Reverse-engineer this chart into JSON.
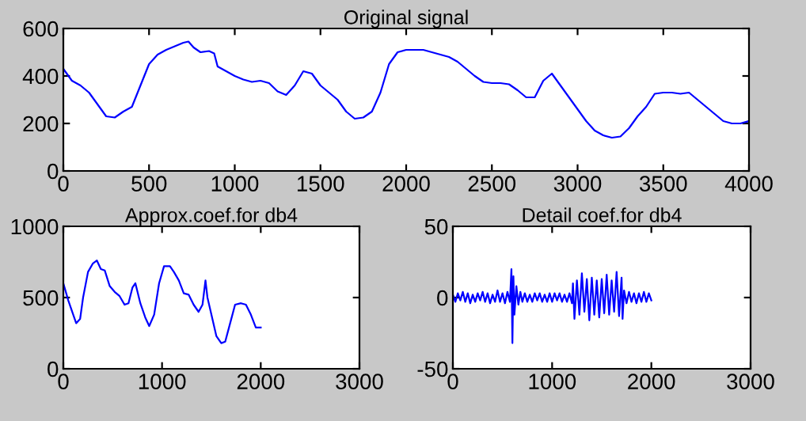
{
  "chart_data": [
    {
      "type": "line",
      "title": "Original signal",
      "xlim": [
        0,
        4000
      ],
      "ylim": [
        0,
        600
      ],
      "xticks": [
        0,
        500,
        1000,
        1500,
        2000,
        2500,
        3000,
        3500,
        4000
      ],
      "yticks": [
        0,
        200,
        400,
        600
      ],
      "series": [
        {
          "color": "#0000ff",
          "x": [
            0,
            50,
            100,
            150,
            200,
            250,
            300,
            350,
            400,
            450,
            500,
            550,
            600,
            650,
            700,
            730,
            760,
            800,
            850,
            880,
            900,
            950,
            1000,
            1050,
            1100,
            1150,
            1200,
            1250,
            1300,
            1350,
            1400,
            1450,
            1500,
            1550,
            1600,
            1650,
            1700,
            1750,
            1800,
            1850,
            1900,
            1950,
            2000,
            2050,
            2100,
            2150,
            2200,
            2250,
            2300,
            2350,
            2400,
            2450,
            2500,
            2550,
            2600,
            2650,
            2700,
            2750,
            2800,
            2850,
            2900,
            2950,
            3000,
            3050,
            3100,
            3150,
            3200,
            3250,
            3300,
            3350,
            3400,
            3450,
            3500,
            3550,
            3600,
            3650,
            3700,
            3750,
            3800,
            3850,
            3900,
            3950,
            4000
          ],
          "values": [
            430,
            380,
            360,
            330,
            280,
            230,
            225,
            250,
            270,
            360,
            450,
            490,
            510,
            525,
            540,
            545,
            520,
            500,
            505,
            495,
            440,
            420,
            400,
            385,
            375,
            380,
            370,
            335,
            320,
            360,
            420,
            410,
            360,
            330,
            300,
            250,
            220,
            225,
            250,
            330,
            450,
            500,
            510,
            510,
            510,
            500,
            490,
            480,
            460,
            430,
            400,
            375,
            370,
            370,
            365,
            340,
            310,
            310,
            380,
            410,
            360,
            310,
            260,
            210,
            170,
            150,
            140,
            145,
            180,
            230,
            270,
            325,
            330,
            330,
            325,
            330,
            300,
            270,
            240,
            210,
            200,
            200,
            210
          ]
        }
      ]
    },
    {
      "type": "line",
      "title": "Approx.coef.for db4",
      "xlim": [
        0,
        3000
      ],
      "ylim": [
        0,
        1000
      ],
      "xticks": [
        0,
        1000,
        2000,
        3000
      ],
      "yticks": [
        0,
        500,
        1000
      ],
      "series": [
        {
          "color": "#0000ff",
          "x": [
            0,
            50,
            100,
            130,
            170,
            200,
            250,
            300,
            340,
            380,
            420,
            470,
            520,
            570,
            620,
            660,
            700,
            730,
            780,
            830,
            870,
            920,
            970,
            1020,
            1080,
            1120,
            1170,
            1220,
            1270,
            1320,
            1370,
            1410,
            1440,
            1460,
            1500,
            1550,
            1600,
            1640,
            1690,
            1740,
            1800,
            1850,
            1900,
            1950,
            2000
          ],
          "values": [
            600,
            480,
            380,
            320,
            350,
            500,
            680,
            740,
            760,
            700,
            690,
            580,
            540,
            510,
            450,
            460,
            570,
            600,
            460,
            360,
            300,
            380,
            600,
            720,
            720,
            680,
            620,
            530,
            520,
            450,
            400,
            450,
            620,
            500,
            380,
            230,
            180,
            190,
            320,
            450,
            460,
            450,
            380,
            290,
            290
          ]
        }
      ]
    },
    {
      "type": "line",
      "title": "Detail coef.for db4",
      "xlim": [
        0,
        3000
      ],
      "ylim": [
        -50,
        50
      ],
      "xticks": [
        0,
        1000,
        2000,
        3000
      ],
      "yticks": [
        -50,
        0,
        50
      ],
      "series": [
        {
          "color": "#0000ff",
          "x": [
            0,
            25,
            50,
            75,
            100,
            125,
            150,
            175,
            200,
            225,
            250,
            275,
            300,
            325,
            350,
            375,
            400,
            425,
            450,
            475,
            500,
            525,
            550,
            575,
            590,
            600,
            610,
            620,
            640,
            660,
            680,
            700,
            725,
            750,
            775,
            800,
            825,
            850,
            875,
            900,
            925,
            950,
            975,
            1000,
            1025,
            1050,
            1075,
            1100,
            1125,
            1150,
            1175,
            1200,
            1210,
            1225,
            1250,
            1275,
            1300,
            1325,
            1350,
            1375,
            1400,
            1425,
            1450,
            1475,
            1500,
            1525,
            1550,
            1575,
            1600,
            1625,
            1650,
            1675,
            1700,
            1710,
            1725,
            1750,
            1775,
            1800,
            1825,
            1850,
            1875,
            1900,
            1925,
            1950,
            1975,
            2000
          ],
          "values": [
            2,
            -3,
            3,
            -2,
            4,
            -3,
            3,
            -4,
            2,
            -3,
            3,
            -2,
            4,
            -3,
            3,
            -4,
            2,
            -3,
            5,
            -3,
            3,
            -4,
            4,
            -3,
            20,
            -32,
            15,
            -12,
            8,
            -5,
            4,
            -3,
            3,
            -3,
            2,
            -3,
            3,
            -2,
            3,
            -3,
            2,
            -3,
            3,
            -3,
            3,
            -2,
            3,
            -3,
            2,
            -3,
            3,
            -4,
            10,
            -15,
            12,
            -12,
            17,
            -10,
            13,
            -16,
            14,
            -12,
            12,
            -14,
            13,
            -11,
            16,
            -12,
            12,
            -10,
            18,
            -13,
            14,
            -15,
            5,
            -4,
            4,
            -3,
            3,
            -4,
            3,
            -3,
            4,
            -3,
            3,
            -2
          ]
        }
      ]
    }
  ]
}
